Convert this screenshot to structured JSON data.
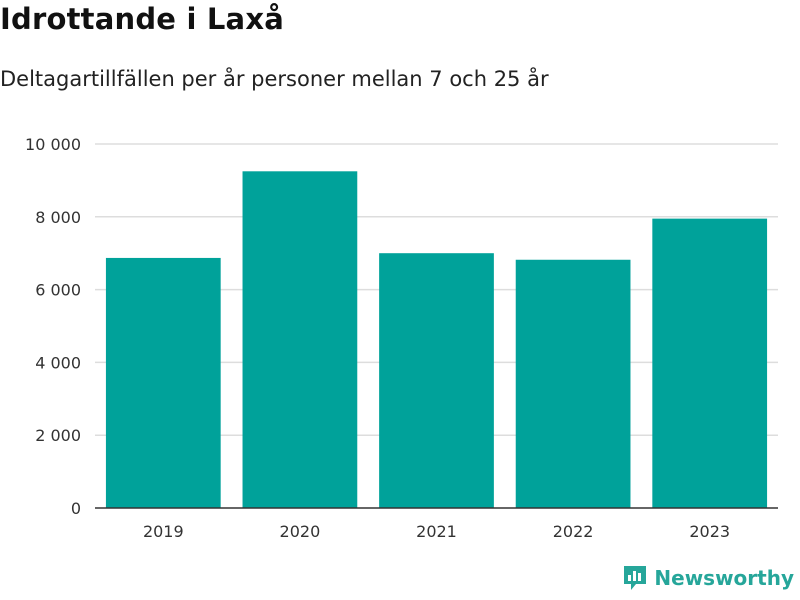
{
  "header": {
    "title": "Idrottande i Laxå",
    "subtitle": "Deltagartillfällen per år personer mellan 7 och 25 år"
  },
  "brand": {
    "name": "Newsworthy",
    "icon": "newsworthy-logo-icon",
    "color": "#26a69a"
  },
  "colors": {
    "bar": "#00a29a",
    "grid": "#dddddd",
    "axis": "#333333"
  },
  "chart_data": {
    "type": "bar",
    "categories": [
      "2019",
      "2020",
      "2021",
      "2022",
      "2023"
    ],
    "values": [
      6870,
      9250,
      7000,
      6820,
      7950
    ],
    "title": "Idrottande i Laxå",
    "subtitle": "Deltagartillfällen per år personer mellan 7 och 25 år",
    "xlabel": "",
    "ylabel": "",
    "ylim": [
      0,
      10000
    ],
    "yticks": [
      0,
      2000,
      4000,
      6000,
      8000,
      10000
    ],
    "ytick_labels": [
      "0",
      "2 000",
      "4 000",
      "6 000",
      "8 000",
      "10 000"
    ],
    "grid": true,
    "legend": "none"
  }
}
